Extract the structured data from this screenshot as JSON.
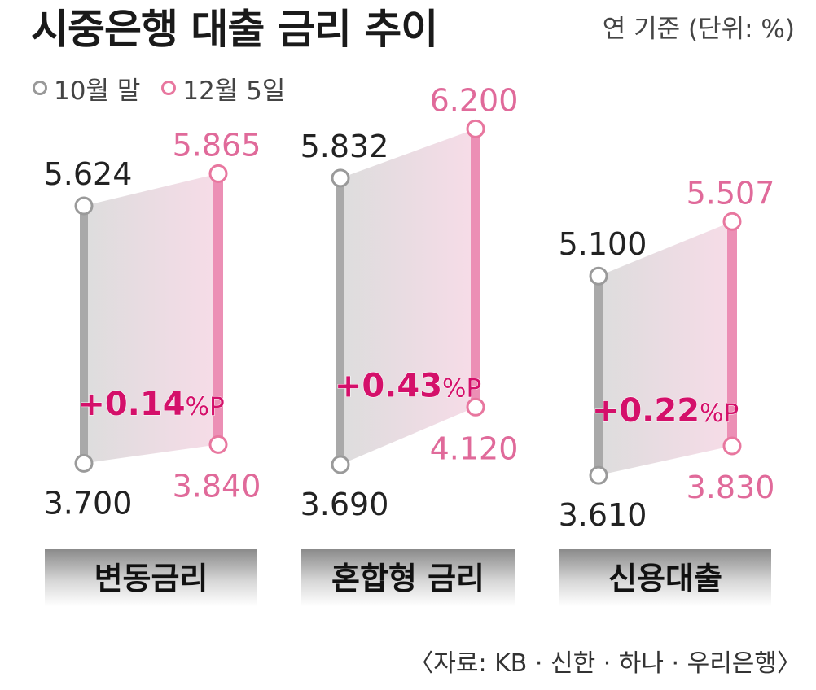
{
  "header": {
    "title": "시중은행 대출 금리 추이",
    "unit": "연 기준 (단위: %)"
  },
  "legend": {
    "items": [
      {
        "label": "10월 말",
        "color": "#a9a9a9"
      },
      {
        "label": "12월 5일",
        "color": "#e8779f"
      }
    ]
  },
  "colors": {
    "oct": "#a9a9a9",
    "dec": "#ec8fb5",
    "dec_text": "#e06a9a",
    "change_text": "#d4106a"
  },
  "chart_data": {
    "type": "range",
    "y_unit": "%",
    "series": [
      {
        "name": "10월 말"
      },
      {
        "name": "12월 5일"
      }
    ],
    "groups": [
      {
        "category": "변동금리",
        "oct_min": 3.7,
        "oct_max": 5.624,
        "dec_min": 3.84,
        "dec_max": 5.865,
        "change": "+0.14%P"
      },
      {
        "category": "혼합형 금리",
        "oct_min": 3.69,
        "oct_max": 5.832,
        "dec_min": 4.12,
        "dec_max": 6.2,
        "change": "+0.43%P"
      },
      {
        "category": "신용대출",
        "oct_min": 3.61,
        "oct_max": 5.1,
        "dec_min": 3.83,
        "dec_max": 5.507,
        "change": "+0.22%P"
      }
    ]
  },
  "source": "〈자료: KB · 신한 · 하나 · 우리은행〉"
}
